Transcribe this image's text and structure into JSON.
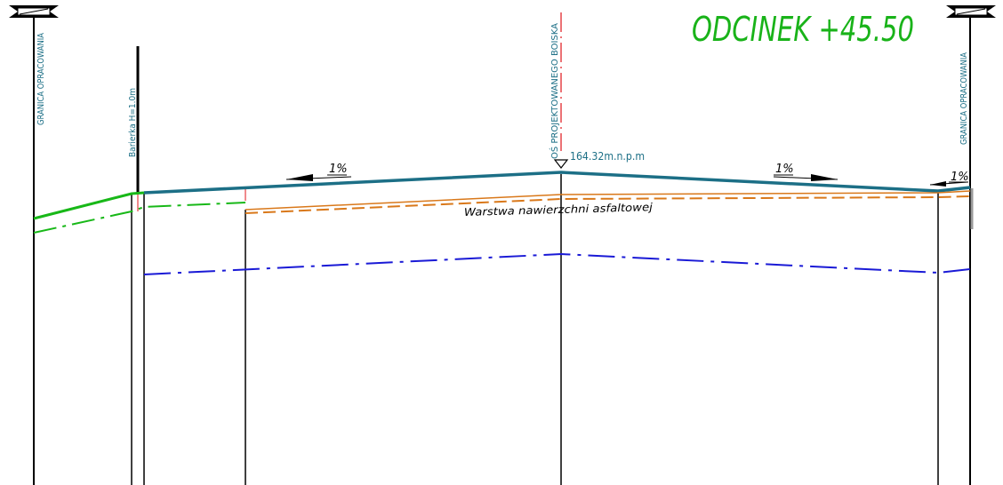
{
  "drawing": {
    "section_title": "ODCINEK +45.50",
    "left_boundary_label": "GRANICA OPRACOWANIA",
    "right_boundary_label": "GRANICA OPRACOWANIA",
    "barrier_label": "Barierka H=1.0m",
    "axis_label": "OŚ PROJEKTOWANEGO BOISKA",
    "elevation_label": "164.32m.n.p.m",
    "slope_left": "1%",
    "slope_right": "1%",
    "slope_edge": "1%",
    "layer_label": "Warstwa nawierzchni asfaltowej"
  },
  "colors": {
    "title": "#19b319",
    "surface": "#1c6f86",
    "terrain": "#18b818",
    "layer": "#d9781a",
    "lower_line": "#1a1ad6",
    "axis_red": "#e0141a",
    "label_blue": "#1c6f86",
    "black": "#000000"
  }
}
